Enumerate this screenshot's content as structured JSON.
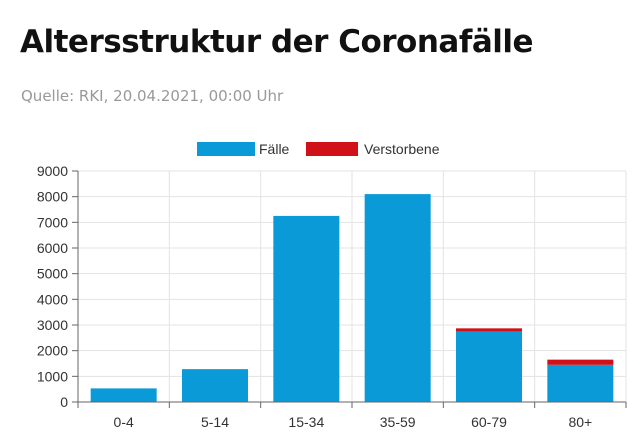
{
  "header": {
    "title": "Altersstruktur der Coronafälle",
    "source": "Quelle: RKI, 20.04.2021, 00:00 Uhr"
  },
  "colors": {
    "cases": "#0a9ad8",
    "deaths": "#d0111a",
    "grid": "#e3e3e3",
    "axis": "#666666"
  },
  "chart_data": {
    "type": "bar",
    "stacked": true,
    "categories": [
      "0-4",
      "5-14",
      "15-34",
      "35-59",
      "60-79",
      "80+"
    ],
    "series": [
      {
        "name": "Fälle",
        "values": [
          530,
          1280,
          7250,
          8100,
          2750,
          1450
        ]
      },
      {
        "name": "Verstorbene",
        "values": [
          0,
          0,
          0,
          0,
          120,
          200
        ]
      }
    ],
    "ylim": [
      0,
      9000
    ],
    "yticks": [
      0,
      1000,
      2000,
      3000,
      4000,
      5000,
      6000,
      7000,
      8000,
      9000
    ],
    "grid": true,
    "legend_position": "top-center"
  }
}
